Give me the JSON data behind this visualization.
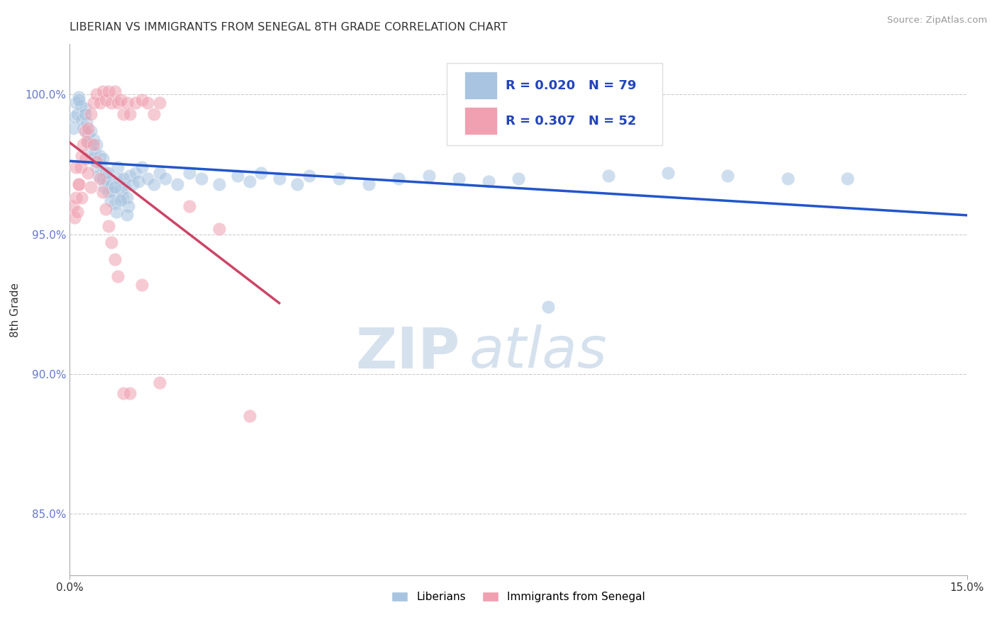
{
  "title": "LIBERIAN VS IMMIGRANTS FROM SENEGAL 8TH GRADE CORRELATION CHART",
  "source": "Source: ZipAtlas.com",
  "ylabel": "8th Grade",
  "ylabel_ticks": [
    "85.0%",
    "90.0%",
    "95.0%",
    "100.0%"
  ],
  "ylabel_vals": [
    0.85,
    0.9,
    0.95,
    1.0
  ],
  "xmin": 0.0,
  "xmax": 15.0,
  "ymin": 0.828,
  "ymax": 1.018,
  "blue_R": "0.020",
  "blue_N": "79",
  "pink_R": "0.307",
  "pink_N": "52",
  "blue_color": "#a8c4e0",
  "pink_color": "#f0a0b0",
  "blue_line_color": "#2255cc",
  "pink_line_color": "#cc4466",
  "legend_blue_label": "Liberians",
  "legend_pink_label": "Immigrants from Senegal",
  "watermark_zip": "ZIP",
  "watermark_atlas": "atlas",
  "blue_x": [
    0.05,
    0.08,
    0.1,
    0.12,
    0.15,
    0.18,
    0.2,
    0.22,
    0.25,
    0.28,
    0.3,
    0.32,
    0.35,
    0.38,
    0.4,
    0.42,
    0.45,
    0.48,
    0.5,
    0.52,
    0.55,
    0.58,
    0.6,
    0.62,
    0.65,
    0.68,
    0.7,
    0.72,
    0.75,
    0.78,
    0.8,
    0.82,
    0.85,
    0.88,
    0.9,
    0.92,
    0.95,
    0.98,
    1.0,
    1.05,
    1.1,
    1.15,
    1.2,
    1.3,
    1.4,
    1.5,
    1.6,
    1.8,
    2.0,
    2.2,
    2.5,
    2.8,
    3.0,
    3.2,
    3.5,
    3.8,
    4.0,
    4.5,
    5.0,
    5.5,
    6.0,
    6.5,
    7.0,
    7.5,
    8.0,
    9.0,
    10.0,
    11.0,
    12.0,
    13.0,
    0.15,
    0.25,
    0.35,
    0.45,
    0.55,
    0.65,
    0.75,
    0.85,
    0.95
  ],
  "blue_y": [
    0.988,
    0.992,
    0.997,
    0.993,
    0.999,
    0.996,
    0.991,
    0.988,
    0.995,
    0.99,
    0.986,
    0.983,
    0.98,
    0.977,
    0.984,
    0.979,
    0.974,
    0.971,
    0.978,
    0.975,
    0.97,
    0.967,
    0.972,
    0.969,
    0.965,
    0.962,
    0.968,
    0.965,
    0.961,
    0.958,
    0.974,
    0.97,
    0.966,
    0.963,
    0.97,
    0.967,
    0.963,
    0.96,
    0.971,
    0.968,
    0.972,
    0.969,
    0.974,
    0.97,
    0.968,
    0.972,
    0.97,
    0.968,
    0.972,
    0.97,
    0.968,
    0.971,
    0.969,
    0.972,
    0.97,
    0.968,
    0.971,
    0.97,
    0.968,
    0.97,
    0.971,
    0.97,
    0.969,
    0.97,
    0.924,
    0.971,
    0.972,
    0.971,
    0.97,
    0.97,
    0.998,
    0.993,
    0.987,
    0.982,
    0.977,
    0.972,
    0.967,
    0.962,
    0.957
  ],
  "pink_x": [
    0.05,
    0.08,
    0.1,
    0.12,
    0.15,
    0.18,
    0.2,
    0.22,
    0.25,
    0.28,
    0.3,
    0.35,
    0.4,
    0.45,
    0.5,
    0.55,
    0.6,
    0.65,
    0.7,
    0.75,
    0.8,
    0.85,
    0.9,
    0.95,
    1.0,
    1.1,
    1.2,
    1.3,
    1.4,
    1.5,
    0.1,
    0.15,
    0.2,
    0.25,
    0.3,
    0.35,
    0.4,
    0.45,
    0.5,
    0.55,
    0.6,
    0.65,
    0.7,
    0.75,
    0.8,
    0.9,
    1.0,
    1.2,
    1.5,
    2.0,
    2.5,
    3.0
  ],
  "pink_y": [
    0.96,
    0.956,
    0.963,
    0.958,
    0.968,
    0.974,
    0.978,
    0.982,
    0.987,
    0.983,
    0.988,
    0.993,
    0.997,
    1.0,
    0.997,
    1.001,
    0.998,
    1.001,
    0.997,
    1.001,
    0.997,
    0.998,
    0.993,
    0.997,
    0.993,
    0.997,
    0.998,
    0.997,
    0.993,
    0.997,
    0.974,
    0.968,
    0.963,
    0.977,
    0.972,
    0.967,
    0.982,
    0.976,
    0.97,
    0.965,
    0.959,
    0.953,
    0.947,
    0.941,
    0.935,
    0.893,
    0.893,
    0.932,
    0.897,
    0.96,
    0.952,
    0.885
  ]
}
